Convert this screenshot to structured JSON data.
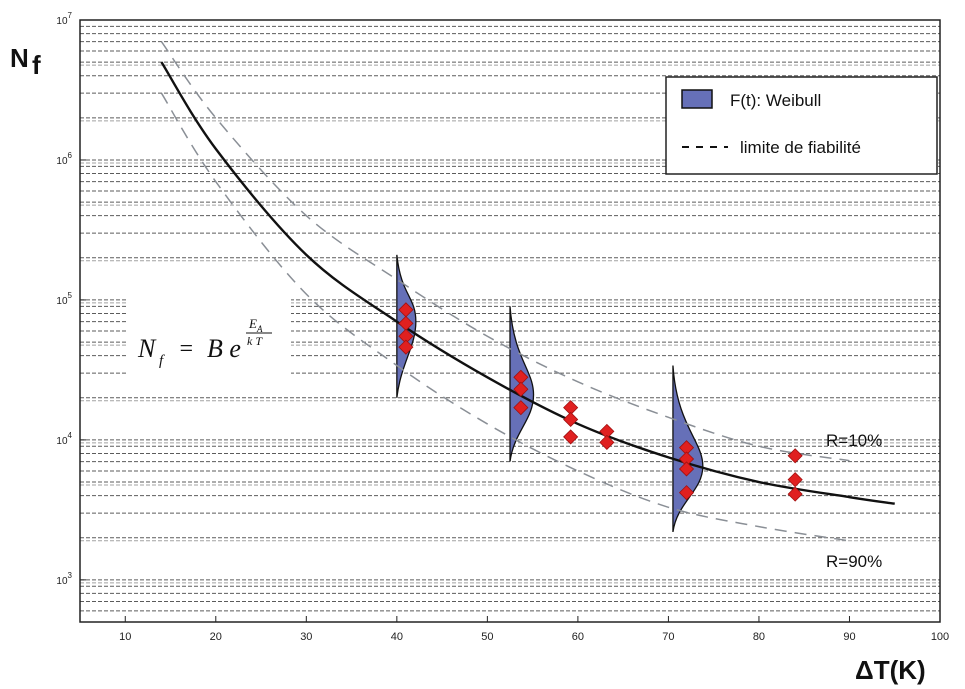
{
  "chart_data": {
    "type": "scatter",
    "title": "",
    "xlabel": "ΔT(K)",
    "ylabel": "N",
    "ylabel_sub": "f",
    "y_scale": "log",
    "xlim": [
      5,
      100
    ],
    "ylim": [
      500,
      10000000
    ],
    "x_ticks": [
      "10",
      "20",
      "30",
      "40",
      "50",
      "60",
      "70",
      "80",
      "90",
      "100"
    ],
    "y_tick_mantissa": "10",
    "y_tick_exponents": [
      "3",
      "4",
      "5",
      "6",
      "7"
    ],
    "grid": "horizontal dashed",
    "legend_position": "top-right",
    "legend": {
      "weibull_label": "F(t): Weibull",
      "limit_label": "limite de fiabilité"
    },
    "formula": {
      "lhs": "N",
      "lhs_sub": "f",
      "equals": "=",
      "rhs": "B e",
      "exp_num": "E",
      "exp_num_sub": "A",
      "exp_den": "k T"
    },
    "annotations": {
      "r10": "R=10%",
      "r90": "R=90%"
    },
    "colors": {
      "curve": "#111111",
      "limit": "#8a8f96",
      "weibull_fill": "#6670b8",
      "marker": "#e02020",
      "grid": "#333333"
    },
    "model_curve": {
      "name": "N_f = B e^(E_A/kT)",
      "points": [
        [
          14,
          5000000
        ],
        [
          20,
          1200000
        ],
        [
          30,
          210000
        ],
        [
          40,
          70000
        ],
        [
          50,
          28000
        ],
        [
          60,
          13000
        ],
        [
          70,
          7500
        ],
        [
          80,
          5000
        ],
        [
          90,
          3900
        ],
        [
          95,
          3500
        ]
      ]
    },
    "limit_upper": {
      "name": "R=10%",
      "points": [
        [
          14,
          7000000
        ],
        [
          20,
          2000000
        ],
        [
          30,
          400000
        ],
        [
          40,
          140000
        ],
        [
          50,
          55000
        ],
        [
          60,
          26000
        ],
        [
          70,
          14500
        ],
        [
          80,
          9000
        ],
        [
          90,
          7100
        ]
      ]
    },
    "limit_lower": {
      "name": "R=90%",
      "points": [
        [
          14,
          3000000
        ],
        [
          20,
          700000
        ],
        [
          30,
          110000
        ],
        [
          40,
          34000
        ],
        [
          50,
          13000
        ],
        [
          60,
          6000
        ],
        [
          70,
          3300
        ],
        [
          80,
          2400
        ],
        [
          90,
          1900
        ]
      ]
    },
    "weibull_distributions": [
      {
        "x": 40,
        "ymin": 20000,
        "ymax": 210000,
        "peak_y": 70000,
        "width": 2.1
      },
      {
        "x": 52.5,
        "ymin": 7000,
        "ymax": 90000,
        "peak_y": 21000,
        "width": 2.6
      },
      {
        "x": 70.5,
        "ymin": 2200,
        "ymax": 34000,
        "peak_y": 6500,
        "width": 3.3
      }
    ],
    "data_points": [
      [
        41,
        85000
      ],
      [
        41,
        68000
      ],
      [
        41,
        55000
      ],
      [
        41,
        46000
      ],
      [
        53.7,
        28000
      ],
      [
        53.7,
        23000
      ],
      [
        53.7,
        17000
      ],
      [
        59.2,
        17000
      ],
      [
        59.2,
        14000
      ],
      [
        59.2,
        10500
      ],
      [
        63.2,
        11500
      ],
      [
        63.2,
        9600
      ],
      [
        72,
        8800
      ],
      [
        72,
        7300
      ],
      [
        72,
        6200
      ],
      [
        72,
        4200
      ],
      [
        84,
        7700
      ],
      [
        84,
        5200
      ],
      [
        84,
        4100
      ]
    ]
  }
}
